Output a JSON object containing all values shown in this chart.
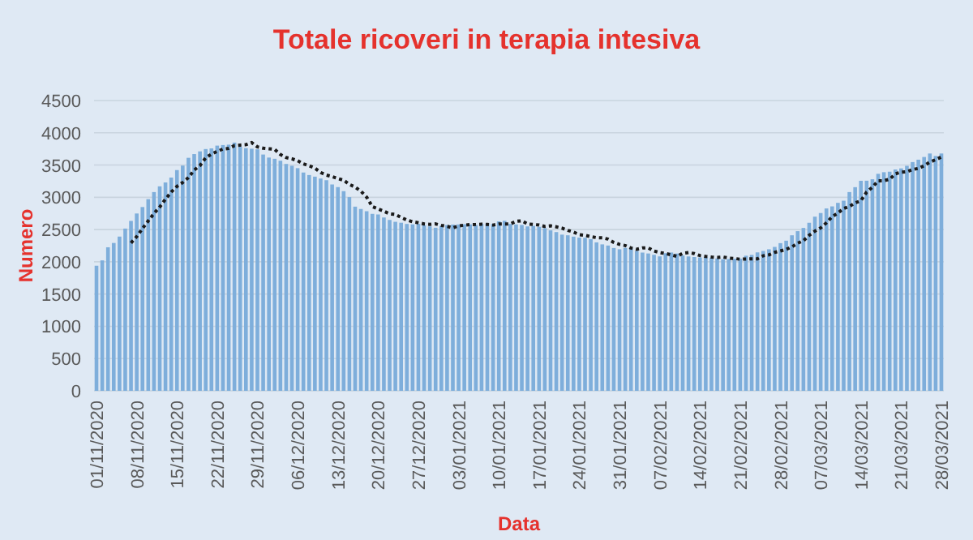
{
  "chart_data": {
    "type": "bar",
    "title": "Totale ricoveri in terapia intesiva",
    "xlabel": "Data",
    "ylabel": "Numero",
    "categories": [
      "01/11/2020",
      null,
      null,
      null,
      null,
      null,
      null,
      "08/11/2020",
      null,
      null,
      null,
      null,
      null,
      null,
      "15/11/2020",
      null,
      null,
      null,
      null,
      null,
      null,
      "22/11/2020",
      null,
      null,
      null,
      null,
      null,
      null,
      "29/11/2020",
      null,
      null,
      null,
      null,
      null,
      null,
      "06/12/2020",
      null,
      null,
      null,
      null,
      null,
      null,
      "13/12/2020",
      null,
      null,
      null,
      null,
      null,
      null,
      "20/12/2020",
      null,
      null,
      null,
      null,
      null,
      null,
      "27/12/2020",
      null,
      null,
      null,
      null,
      null,
      null,
      "03/01/2021",
      null,
      null,
      null,
      null,
      null,
      null,
      "10/01/2021",
      null,
      null,
      null,
      null,
      null,
      null,
      "17/01/2021",
      null,
      null,
      null,
      null,
      null,
      null,
      "24/01/2021",
      null,
      null,
      null,
      null,
      null,
      null,
      "31/01/2021",
      null,
      null,
      null,
      null,
      null,
      null,
      "07/02/2021",
      null,
      null,
      null,
      null,
      null,
      null,
      "14/02/2021",
      null,
      null,
      null,
      null,
      null,
      null,
      "21/02/2021",
      null,
      null,
      null,
      null,
      null,
      null,
      "28/02/2021",
      null,
      null,
      null,
      null,
      null,
      null,
      "07/03/2021",
      null,
      null,
      null,
      null,
      null,
      null,
      "14/03/2021",
      null,
      null,
      null,
      null,
      null,
      null,
      "21/03/2021",
      null,
      null,
      null,
      null,
      null,
      null,
      "28/03/2021"
    ],
    "series": [
      {
        "color": "#7eaedb",
        "values": [
          1939,
          2022,
          2225,
          2292,
          2391,
          2515,
          2634,
          2749,
          2849,
          2971,
          3081,
          3170,
          3230,
          3306,
          3422,
          3492,
          3612,
          3670,
          3712,
          3748,
          3758,
          3801,
          3810,
          3816,
          3848,
          3782,
          3762,
          3753,
          3744,
          3663,
          3616,
          3597,
          3567,
          3517,
          3489,
          3452,
          3384,
          3345,
          3320,
          3291,
          3265,
          3199,
          3158,
          3095,
          3003,
          2855,
          2819,
          2784,
          2743,
          2734,
          2687,
          2649,
          2620,
          2606,
          2587,
          2580,
          2588,
          2565,
          2549,
          2528,
          2555,
          2569,
          2577,
          2579,
          2583,
          2579,
          2569,
          2587,
          2587,
          2587,
          2627,
          2636,
          2587,
          2579,
          2571,
          2549,
          2557,
          2542,
          2522,
          2487,
          2461,
          2421,
          2411,
          2390,
          2375,
          2372,
          2352,
          2301,
          2270,
          2252,
          2214,
          2194,
          2215,
          2216,
          2168,
          2143,
          2129,
          2108,
          2084,
          2133,
          2144,
          2128,
          2097,
          2083,
          2074,
          2067,
          2074,
          2058,
          2051,
          2040,
          2043,
          2046,
          2047,
          2094,
          2107,
          2146,
          2168,
          2194,
          2231,
          2289,
          2327,
          2411,
          2475,
          2525,
          2605,
          2700,
          2756,
          2827,
          2859,
          2914,
          2947,
          3081,
          3157,
          3256,
          3257,
          3280,
          3364,
          3389,
          3397,
          3431,
          3448,
          3488,
          3546,
          3583,
          3625,
          3679,
          3640,
          3679
        ]
      },
      {
        "type": "line",
        "color": "#1a1a1a",
        "line_style": "dotted",
        "marker": "none",
        "values": [
          null,
          null,
          null,
          null,
          null,
          null,
          2292,
          2391,
          2515,
          2634,
          2749,
          2849,
          2971,
          3081,
          3170,
          3230,
          3306,
          3422,
          3492,
          3612,
          3670,
          3712,
          3748,
          3758,
          3801,
          3810,
          3816,
          3848,
          3782,
          3762,
          3753,
          3744,
          3663,
          3616,
          3597,
          3567,
          3517,
          3489,
          3452,
          3384,
          3345,
          3320,
          3291,
          3265,
          3199,
          3158,
          3095,
          3003,
          2855,
          2819,
          2784,
          2743,
          2734,
          2687,
          2649,
          2620,
          2606,
          2587,
          2580,
          2588,
          2565,
          2549,
          2528,
          2555,
          2569,
          2577,
          2579,
          2583,
          2579,
          2569,
          2587,
          2587,
          2587,
          2627,
          2636,
          2587,
          2579,
          2571,
          2549,
          2557,
          2542,
          2522,
          2487,
          2461,
          2421,
          2411,
          2390,
          2375,
          2372,
          2352,
          2301,
          2270,
          2252,
          2214,
          2194,
          2215,
          2216,
          2168,
          2143,
          2129,
          2108,
          2084,
          2133,
          2144,
          2128,
          2097,
          2083,
          2074,
          2067,
          2074,
          2058,
          2051,
          2040,
          2043,
          2046,
          2047,
          2094,
          2107,
          2146,
          2168,
          2194,
          2231,
          2289,
          2327,
          2411,
          2475,
          2525,
          2605,
          2700,
          2756,
          2827,
          2859,
          2914,
          2947,
          3081,
          3157,
          3256,
          3257,
          3280,
          3364,
          3389,
          3397,
          3431,
          3448,
          3488,
          3546,
          3583,
          3625
        ]
      }
    ],
    "ylim": [
      0,
      4500
    ],
    "yticks": [
      0,
      500,
      1000,
      1500,
      2000,
      2500,
      3000,
      3500,
      4000,
      4500
    ],
    "grid": "y"
  }
}
